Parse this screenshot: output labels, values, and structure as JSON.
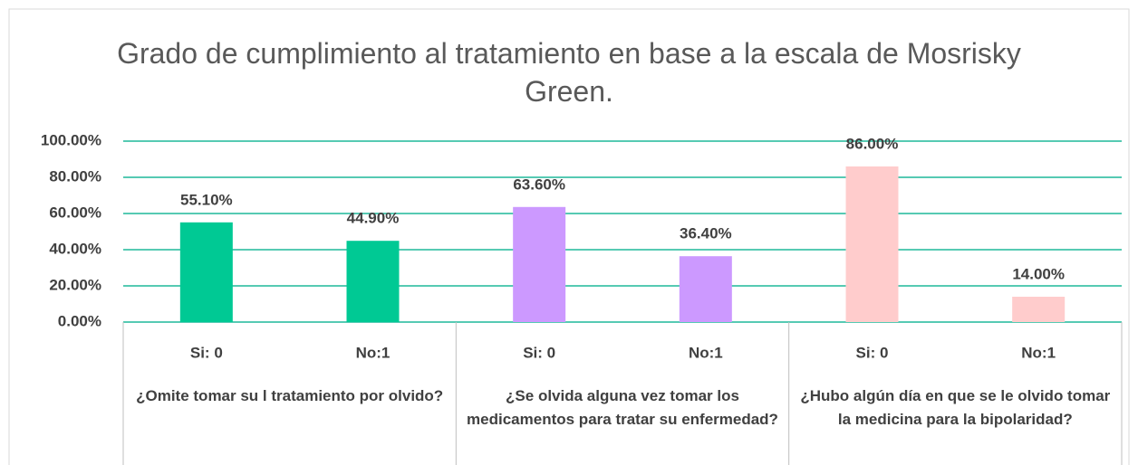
{
  "chart_data": {
    "type": "bar",
    "title": "Grado de cumplimiento al tratamiento en base a la escala de Mosrisky Green.",
    "groups": [
      {
        "name": "¿Omite tomar su l tratamiento por olvido?",
        "color": "#00c994",
        "categories": [
          "Si: 0",
          "No:1"
        ],
        "values": [
          55.1,
          44.9
        ],
        "value_labels": [
          "55.10%",
          "44.90%"
        ]
      },
      {
        "name": "¿Se olvida alguna vez tomar los medicamentos para tratar su enfermedad?",
        "color": "#cc99ff",
        "categories": [
          "Si: 0",
          "No:1"
        ],
        "values": [
          63.6,
          36.4
        ],
        "value_labels": [
          "63.60%",
          "36.40%"
        ]
      },
      {
        "name": "¿Hubo algún día en que se le olvido tomar la medicina para la bipolaridad?",
        "color": "#ffcccc",
        "categories": [
          "Si: 0",
          "No:1"
        ],
        "values": [
          86,
          14
        ],
        "value_labels": [
          "86.00%",
          "14.00%"
        ]
      }
    ],
    "ylim": [
      0,
      100
    ],
    "yticks": [
      {
        "value": 0,
        "label": "0.00%"
      },
      {
        "value": 20,
        "label": "20.00%"
      },
      {
        "value": 40,
        "label": "40.00%"
      },
      {
        "value": 60,
        "label": "60.00%"
      },
      {
        "value": 80,
        "label": "80.00%"
      },
      {
        "value": 100,
        "label": "100.00%"
      }
    ],
    "grid": true,
    "grid_color": "#1fb99a"
  }
}
